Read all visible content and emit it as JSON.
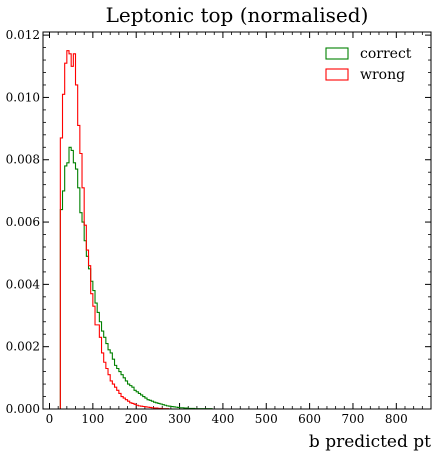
{
  "chart_data": {
    "type": "step-histogram",
    "title": "Leptonic top (normalised)",
    "xlabel": "b predicted pt",
    "ylabel": "",
    "xlim": [
      -15,
      880
    ],
    "ylim": [
      0,
      0.0121
    ],
    "bin_width": 5,
    "x_ticks": [
      0,
      100,
      200,
      300,
      400,
      500,
      600,
      700,
      800
    ],
    "y_ticks": [
      0.0,
      0.002,
      0.004,
      0.006,
      0.008,
      0.01,
      0.012
    ],
    "x_tick_labels": [
      "0",
      "100",
      "200",
      "300",
      "400",
      "500",
      "600",
      "700",
      "800"
    ],
    "y_tick_labels": [
      "0.000",
      "0.002",
      "0.004",
      "0.006",
      "0.008",
      "0.010",
      "0.012"
    ],
    "legend_position": "top-right",
    "series": [
      {
        "name": "correct",
        "color": "#008000",
        "x_start": 25,
        "values": [
          0.0064,
          0.007,
          0.0078,
          0.0079,
          0.0084,
          0.0083,
          0.0079,
          0.0077,
          0.0071,
          0.0063,
          0.006,
          0.0054,
          0.0049,
          0.0045,
          0.0041,
          0.0038,
          0.0034,
          0.0031,
          0.0028,
          0.0025,
          0.0023,
          0.0021,
          0.0019,
          0.0018,
          0.0016,
          0.0014,
          0.0013,
          0.0012,
          0.0011,
          0.001,
          0.0009,
          0.0008,
          0.00075,
          0.0007,
          0.0006,
          0.00055,
          0.0005,
          0.00045,
          0.0004,
          0.00035,
          0.0003,
          0.00028,
          0.00025,
          0.00022,
          0.0002,
          0.00018,
          0.00016,
          0.00014,
          0.00012,
          0.0001,
          9e-05,
          8e-05,
          7e-05,
          6e-05,
          5e-05,
          4e-05,
          4e-05,
          3e-05,
          3e-05,
          2e-05,
          2e-05,
          2e-05,
          1e-05,
          1e-05,
          1e-05,
          1e-05,
          1e-05,
          1e-05,
          1e-05,
          1e-05,
          0.0,
          0.0,
          0.0,
          0.0,
          0.0,
          0.0,
          0.0,
          0.0,
          0.0,
          0.0,
          0.0,
          0.0,
          0.0,
          0.0,
          0.0,
          0.0,
          0.0,
          0.0,
          0.0,
          0.0,
          0.0,
          0.0,
          0.0,
          0.0,
          0.0,
          0.0,
          0.0,
          0.0,
          0.0,
          0.0,
          0.0,
          0.0,
          0.0,
          0.0,
          0.0,
          0.0,
          0.0,
          0.0,
          0.0,
          0.0,
          0.0,
          0.0,
          0.0,
          0.0,
          0.0,
          0.0,
          0.0,
          0.0,
          0.0,
          0.0,
          0.0,
          0.0,
          0.0,
          0.0,
          0.0,
          0.0,
          0.0,
          0.0,
          0.0,
          0.0,
          0.0,
          0.0,
          0.0,
          0.0,
          0.0,
          0.0,
          0.0,
          0.0,
          0.0,
          0.0,
          0.0,
          0.0,
          0.0,
          0.0,
          0.0,
          0.0,
          0.0,
          0.0,
          0.0,
          0.0,
          0.0,
          0.0,
          0.0,
          0.0,
          0.0,
          0.0,
          0.0,
          0.0,
          0.0,
          0.0,
          0.0,
          0.0,
          0.0,
          0.0,
          0.0,
          0.0,
          0.0,
          0.0,
          0.0
        ]
      },
      {
        "name": "wrong",
        "color": "#ff0000",
        "x_start": 25,
        "values": [
          0.0087,
          0.0101,
          0.0111,
          0.0115,
          0.0114,
          0.011,
          0.0114,
          0.0104,
          0.0091,
          0.0082,
          0.0071,
          0.0059,
          0.0051,
          0.0046,
          0.0037,
          0.0033,
          0.0027,
          0.0027,
          0.0023,
          0.0018,
          0.0015,
          0.0013,
          0.0011,
          0.0009,
          0.0008,
          0.0007,
          0.0006,
          0.0005,
          0.0004,
          0.00035,
          0.0003,
          0.00025,
          0.0002,
          0.00018,
          0.00015,
          0.00012,
          0.0001,
          9e-05,
          8e-05,
          7e-05,
          6e-05,
          5e-05,
          4e-05,
          3e-05,
          3e-05,
          2e-05,
          2e-05,
          1e-05,
          1e-05,
          1e-05,
          0.0,
          0.0,
          0.0,
          0.0,
          0.0,
          0.0,
          0.0,
          0.0,
          0.0,
          0.0,
          0.0,
          0.0,
          0.0,
          0.0,
          0.0,
          0.0,
          0.0,
          0.0,
          0.0,
          0.0,
          0.0,
          0.0,
          0.0,
          0.0,
          0.0,
          0.0,
          0.0,
          0.0,
          0.0,
          0.0,
          0.0,
          0.0,
          0.0,
          0.0,
          0.0,
          0.0,
          0.0,
          0.0,
          0.0,
          0.0,
          0.0,
          0.0,
          0.0,
          0.0,
          0.0,
          0.0,
          0.0,
          0.0,
          0.0,
          0.0,
          0.0,
          0.0,
          0.0,
          0.0,
          0.0,
          0.0,
          0.0,
          0.0,
          0.0,
          0.0,
          0.0,
          0.0,
          0.0,
          0.0,
          0.0,
          0.0,
          0.0,
          0.0,
          0.0,
          0.0,
          0.0,
          0.0,
          0.0,
          0.0,
          0.0,
          0.0,
          0.0,
          0.0,
          0.0,
          0.0,
          0.0,
          0.0,
          0.0,
          0.0,
          0.0,
          0.0,
          0.0,
          0.0,
          0.0,
          0.0,
          0.0,
          0.0,
          0.0,
          0.0,
          0.0,
          0.0,
          0.0,
          0.0,
          0.0,
          0.0,
          0.0,
          0.0,
          0.0,
          0.0,
          0.0,
          0.0,
          0.0,
          0.0,
          0.0,
          0.0,
          0.0,
          0.0,
          0.0,
          0.0,
          0.0,
          0.0,
          0.0,
          0.0,
          0.0,
          0.0,
          0.0
        ]
      }
    ]
  }
}
